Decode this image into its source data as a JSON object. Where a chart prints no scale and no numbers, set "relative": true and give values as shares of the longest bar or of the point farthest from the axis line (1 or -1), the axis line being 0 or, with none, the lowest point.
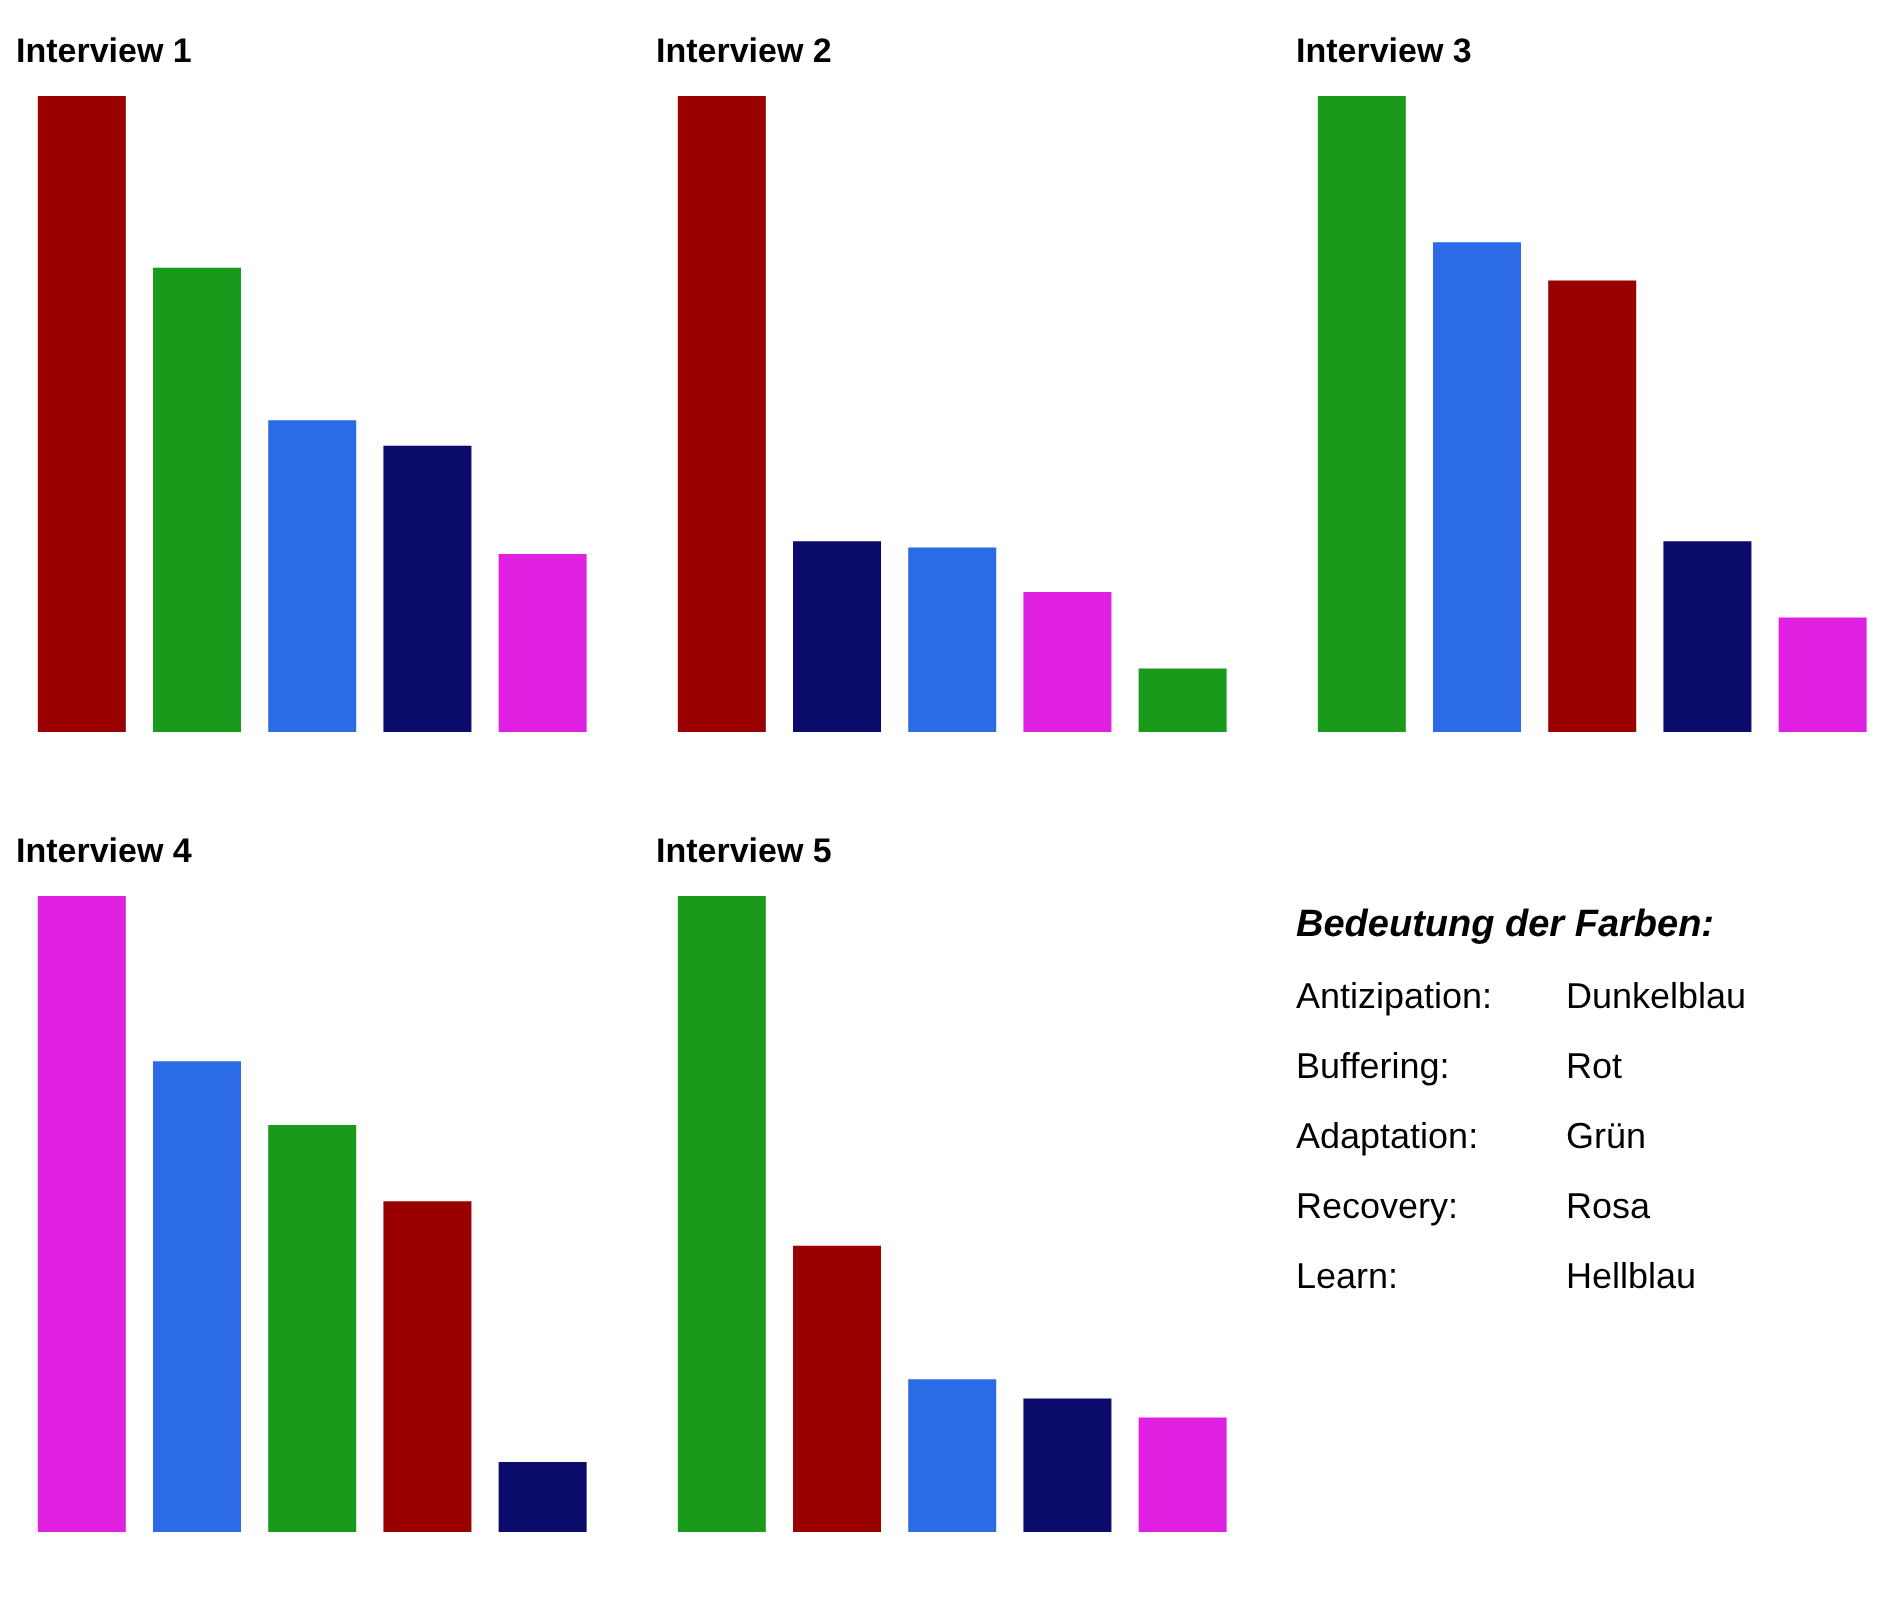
{
  "chart_data": [
    {
      "type": "bar",
      "title": "Interview 1",
      "relative": true,
      "categories": [
        null,
        null,
        null,
        null,
        null
      ],
      "values": [
        1,
        0.73,
        0.49,
        0.45,
        0.28
      ],
      "colors": [
        "#990000",
        "#1a9a1a",
        "#2b6be6",
        "#0b0b6b",
        "#e020e0"
      ]
    },
    {
      "type": "bar",
      "title": "Interview 2",
      "relative": true,
      "categories": [
        null,
        null,
        null,
        null,
        null
      ],
      "values": [
        1,
        0.3,
        0.29,
        0.22,
        0.1
      ],
      "colors": [
        "#990000",
        "#0b0b6b",
        "#2b6be6",
        "#e020e0",
        "#1a9a1a"
      ]
    },
    {
      "type": "bar",
      "title": "Interview 3",
      "relative": true,
      "categories": [
        null,
        null,
        null,
        null,
        null
      ],
      "values": [
        1,
        0.77,
        0.71,
        0.3,
        0.18
      ],
      "colors": [
        "#1a9a1a",
        "#2b6be6",
        "#990000",
        "#0b0b6b",
        "#e020e0"
      ]
    },
    {
      "type": "bar",
      "title": "Interview 4",
      "relative": true,
      "categories": [
        null,
        null,
        null,
        null,
        null
      ],
      "values": [
        1,
        0.74,
        0.64,
        0.52,
        0.11
      ],
      "colors": [
        "#e020e0",
        "#2b6be6",
        "#1a9a1a",
        "#990000",
        "#0b0b6b"
      ]
    },
    {
      "type": "bar",
      "title": "Interview 5",
      "relative": true,
      "categories": [
        null,
        null,
        null,
        null,
        null
      ],
      "values": [
        1,
        0.45,
        0.24,
        0.21,
        0.18
      ],
      "colors": [
        "#1a9a1a",
        "#990000",
        "#2b6be6",
        "#0b0b6b",
        "#e020e0"
      ]
    },
    {
      "type": "other",
      "title": "Bedeutung der Farben:",
      "annotations": [
        "Antizipation:",
        "Dunkelblau",
        "Buffering:",
        "Rot",
        "Adaptation:",
        "Grün",
        "Recovery:",
        "Rosa",
        "Learn:",
        "Hellblau"
      ]
    }
  ]
}
